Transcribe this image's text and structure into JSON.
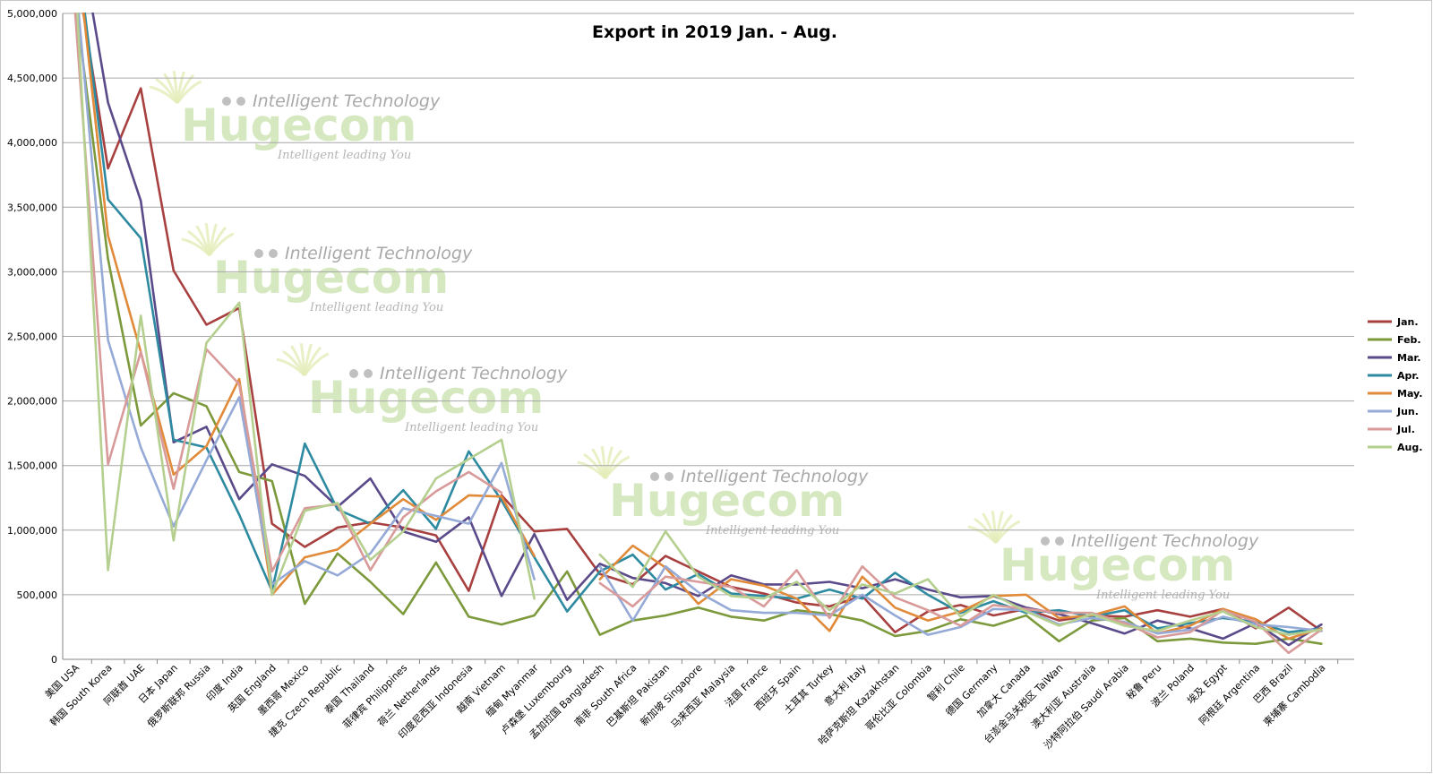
{
  "chart_data": {
    "type": "line",
    "title": "Export in 2019 Jan. - Aug.",
    "xlabel": "",
    "ylabel": "",
    "ylim": [
      0,
      5000000
    ],
    "yticks": [
      0,
      500000,
      1000000,
      1500000,
      2000000,
      2500000,
      3000000,
      3500000,
      4000000,
      4500000,
      5000000
    ],
    "ytick_labels": [
      "0",
      "500,000",
      "1,000,000",
      "1,500,000",
      "2,000,000",
      "2,500,000",
      "3,000,000",
      "3,500,000",
      "4,000,000",
      "4,500,000",
      "5,000,000"
    ],
    "grid": "horizontal",
    "legend_position": "right",
    "categories": [
      "美国 USA",
      "韩国 South Korea",
      "阿联酋 UAE",
      "日本 Japan",
      "俄罗斯联邦 Russia",
      "印度 India",
      "英国 England",
      "墨西哥 Mexico",
      "捷克 Czech Republic",
      "泰国 Thailand",
      "菲律宾 Philippines",
      "荷兰 Netherlands",
      "印度尼西亚 Indonesia",
      "越南 Vietnam",
      "缅甸 Myanmar",
      "卢森堡 Luxembourg",
      "孟加拉国 Bangladesh",
      "南非 South Africa",
      "巴基斯坦 Pakistan",
      "新加坡 Singapore",
      "马来西亚 Malaysia",
      "法国 France",
      "西班牙 Spain",
      "土耳其 Turkey",
      "意大利 Italy",
      "哈萨克斯坦 Kazakhstan",
      "哥伦比亚 Colombia",
      "智利 Chile",
      "德国 Germany",
      "加拿大 Canada",
      "台澎金马关税区 TaiWan",
      "澳大利亚 Australia",
      "沙特阿拉伯 Saudi Arabia",
      "秘鲁 Peru",
      "波兰 Poland",
      "埃及 Egypt",
      "阿根廷 Argentina",
      "巴西 Brazil",
      "柬埔寨 Cambodia"
    ],
    "series": [
      {
        "name": "Jan.",
        "color": "#a84040",
        "values": [
          5400000,
          3800000,
          4420000,
          3010000,
          2590000,
          2720000,
          1050000,
          870000,
          1020000,
          1060000,
          1020000,
          960000,
          530000,
          1270000,
          990000,
          1010000,
          660000,
          580000,
          800000,
          680000,
          560000,
          510000,
          440000,
          410000,
          490000,
          210000,
          370000,
          420000,
          340000,
          390000,
          300000,
          340000,
          330000,
          380000,
          330000,
          390000,
          240000,
          400000,
          220000
        ]
      },
      {
        "name": "Feb.",
        "color": "#7c9a3c",
        "values": [
          5100000,
          3100000,
          1810000,
          2060000,
          1960000,
          1450000,
          1380000,
          430000,
          820000,
          600000,
          350000,
          750000,
          330000,
          270000,
          340000,
          680000,
          190000,
          300000,
          340000,
          400000,
          330000,
          300000,
          380000,
          350000,
          300000,
          180000,
          220000,
          310000,
          260000,
          340000,
          140000,
          300000,
          320000,
          140000,
          160000,
          130000,
          120000,
          160000,
          120000
        ]
      },
      {
        "name": "Mar.",
        "color": "#5b4a8a",
        "values": [
          5800000,
          4310000,
          3550000,
          1680000,
          1800000,
          1240000,
          1510000,
          1420000,
          1180000,
          1400000,
          990000,
          910000,
          1100000,
          490000,
          970000,
          460000,
          740000,
          630000,
          590000,
          490000,
          650000,
          580000,
          580000,
          600000,
          550000,
          620000,
          540000,
          480000,
          490000,
          400000,
          350000,
          280000,
          200000,
          300000,
          240000,
          160000,
          280000,
          110000,
          270000
        ]
      },
      {
        "name": "Apr.",
        "color": "#2e8aa0",
        "values": [
          5600000,
          3560000,
          3260000,
          1700000,
          1640000,
          1120000,
          530000,
          1670000,
          1160000,
          1050000,
          1310000,
          1010000,
          1610000,
          1230000,
          790000,
          370000,
          680000,
          810000,
          540000,
          660000,
          510000,
          490000,
          470000,
          540000,
          470000,
          670000,
          500000,
          360000,
          450000,
          360000,
          380000,
          330000,
          380000,
          240000,
          280000,
          320000,
          290000,
          210000,
          240000
        ]
      },
      {
        "name": "May.",
        "color": "#e08a3a",
        "values": [
          5600000,
          3280000,
          2380000,
          1430000,
          1650000,
          2170000,
          500000,
          790000,
          850000,
          1050000,
          1240000,
          1080000,
          1270000,
          1260000,
          800000,
          null,
          620000,
          880000,
          710000,
          430000,
          620000,
          570000,
          470000,
          220000,
          640000,
          400000,
          300000,
          370000,
          490000,
          500000,
          320000,
          340000,
          410000,
          200000,
          260000,
          390000,
          310000,
          160000,
          240000
        ]
      },
      {
        "name": "Jun.",
        "color": "#95aad6",
        "values": [
          5300000,
          2470000,
          1640000,
          1030000,
          1540000,
          2030000,
          580000,
          760000,
          650000,
          820000,
          1170000,
          1110000,
          1050000,
          1520000,
          620000,
          null,
          720000,
          300000,
          720000,
          520000,
          380000,
          360000,
          360000,
          340000,
          500000,
          340000,
          190000,
          250000,
          390000,
          380000,
          270000,
          320000,
          290000,
          200000,
          230000,
          330000,
          270000,
          250000,
          220000
        ]
      },
      {
        "name": "Jul.",
        "color": "#d99a9a",
        "values": [
          5000000,
          1510000,
          2380000,
          1320000,
          2400000,
          2130000,
          680000,
          1170000,
          1200000,
          690000,
          1100000,
          1300000,
          1450000,
          1290000,
          null,
          null,
          590000,
          410000,
          640000,
          600000,
          560000,
          410000,
          690000,
          320000,
          720000,
          480000,
          380000,
          260000,
          420000,
          390000,
          360000,
          360000,
          280000,
          170000,
          210000,
          380000,
          290000,
          50000,
          230000
        ]
      },
      {
        "name": "Aug.",
        "color": "#b5cf8f",
        "values": [
          5300000,
          690000,
          2660000,
          920000,
          2450000,
          2760000,
          500000,
          1150000,
          1210000,
          770000,
          990000,
          1400000,
          1550000,
          1700000,
          470000,
          null,
          810000,
          560000,
          990000,
          640000,
          490000,
          470000,
          600000,
          380000,
          580000,
          510000,
          620000,
          330000,
          500000,
          370000,
          260000,
          350000,
          260000,
          220000,
          300000,
          370000,
          250000,
          190000,
          230000
        ]
      }
    ]
  },
  "watermark": {
    "brand": "Hugecom",
    "tagline_top": "Intelligent Technology",
    "tagline_bottom": "Intelligent leading You"
  }
}
